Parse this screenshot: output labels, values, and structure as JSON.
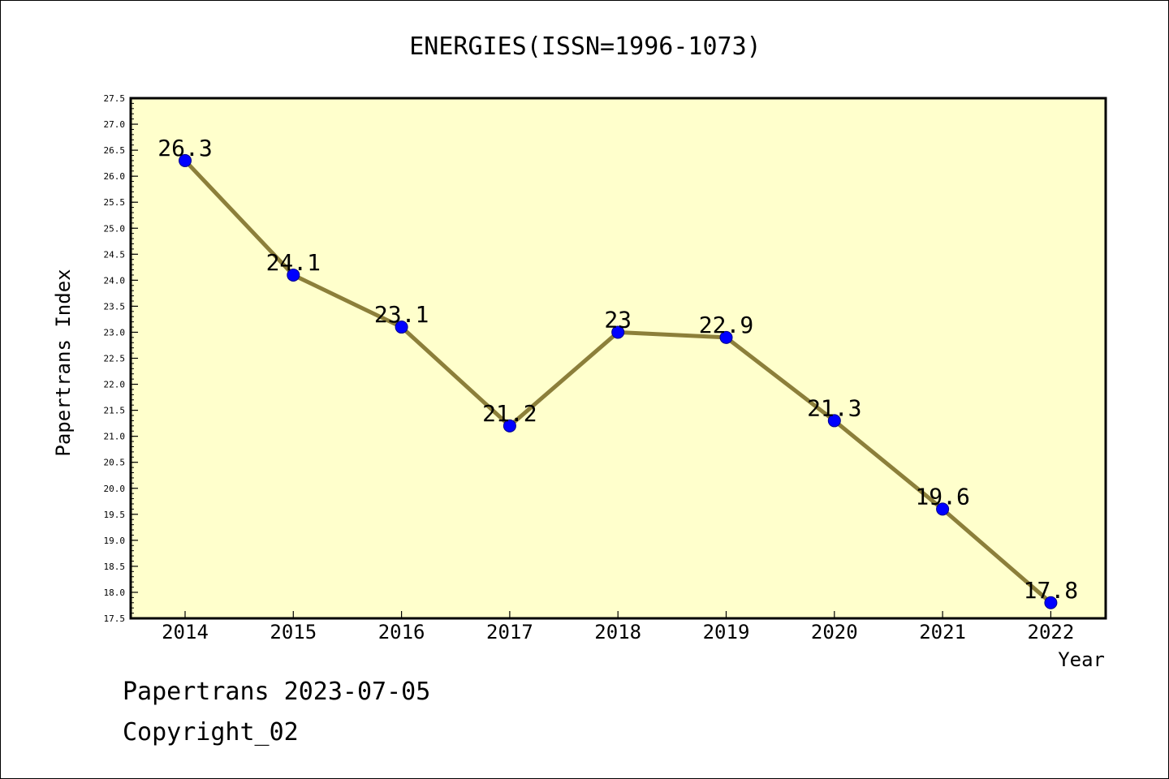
{
  "chart_data": {
    "type": "line",
    "title": "ENERGIES(ISSN=1996-1073)",
    "xlabel": "Year",
    "ylabel": "Papertrans Index",
    "categories": [
      "2014",
      "2015",
      "2016",
      "2017",
      "2018",
      "2019",
      "2020",
      "2021",
      "2022"
    ],
    "series": [
      {
        "values": [
          26.3,
          24.1,
          23.1,
          21.2,
          23,
          22.9,
          21.3,
          19.6,
          17.8
        ]
      }
    ],
    "data_labels": [
      "26.3",
      "24.1",
      "23.1",
      "21.2",
      "23",
      "22.9",
      "21.3",
      "19.6",
      "17.8"
    ],
    "ylim": [
      17.5,
      27.5
    ],
    "yticks": [
      "17.5",
      "18.0",
      "18.5",
      "19.0",
      "19.5",
      "20.0",
      "20.5",
      "21.0",
      "21.5",
      "22.0",
      "22.5",
      "23.0",
      "23.5",
      "24.0",
      "24.5",
      "25.0",
      "25.5",
      "26.0",
      "26.5",
      "27.0",
      "27.5"
    ],
    "grid": false,
    "legend": "none",
    "colors": {
      "plot_background": "#ffffcc",
      "line": "#8c7f3a",
      "marker": "#0000ff",
      "axis": "#000000"
    }
  },
  "footer": {
    "date_line": "Papertrans 2023-07-05",
    "copyright": "Copyright_02"
  }
}
